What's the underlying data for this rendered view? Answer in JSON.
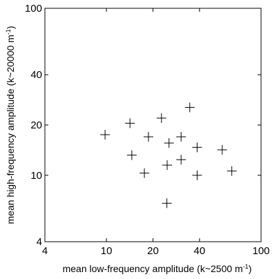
{
  "chart_data": {
    "type": "scatter",
    "title": "",
    "xlabel": "mean low-frequency amplitude (k~2500 m",
    "xlabel_sup": "-1",
    "xlabel_end": ")",
    "ylabel": "mean high-frequency amplitude (k~20000 m",
    "ylabel_sup": "-1",
    "ylabel_end": ")",
    "xscale": "log",
    "yscale": "log",
    "xlim": [
      4,
      100
    ],
    "ylim": [
      4,
      100
    ],
    "xticks": [
      4,
      10,
      20,
      40,
      100
    ],
    "xtick_labels": [
      "4",
      "10",
      "20",
      "40",
      "100"
    ],
    "yticks": [
      4,
      10,
      20,
      40,
      100
    ],
    "ytick_labels": [
      "4",
      "10",
      "20",
      "40",
      "100"
    ],
    "grid": false,
    "marker": "plus",
    "marker_color": "#000000",
    "series": [
      {
        "points": [
          {
            "x": 9.8,
            "y": 17.5
          },
          {
            "x": 14.2,
            "y": 20.5
          },
          {
            "x": 14.6,
            "y": 13.2
          },
          {
            "x": 17.6,
            "y": 10.3
          },
          {
            "x": 18.7,
            "y": 17.0
          },
          {
            "x": 22.7,
            "y": 22.0
          },
          {
            "x": 24.7,
            "y": 11.5
          },
          {
            "x": 25.4,
            "y": 15.6
          },
          {
            "x": 24.6,
            "y": 6.8
          },
          {
            "x": 30.4,
            "y": 17.0
          },
          {
            "x": 30.4,
            "y": 12.4
          },
          {
            "x": 34.6,
            "y": 25.5
          },
          {
            "x": 38.6,
            "y": 14.7
          },
          {
            "x": 38.6,
            "y": 10.0
          },
          {
            "x": 56.1,
            "y": 14.2
          },
          {
            "x": 64.7,
            "y": 10.6
          }
        ]
      }
    ]
  }
}
